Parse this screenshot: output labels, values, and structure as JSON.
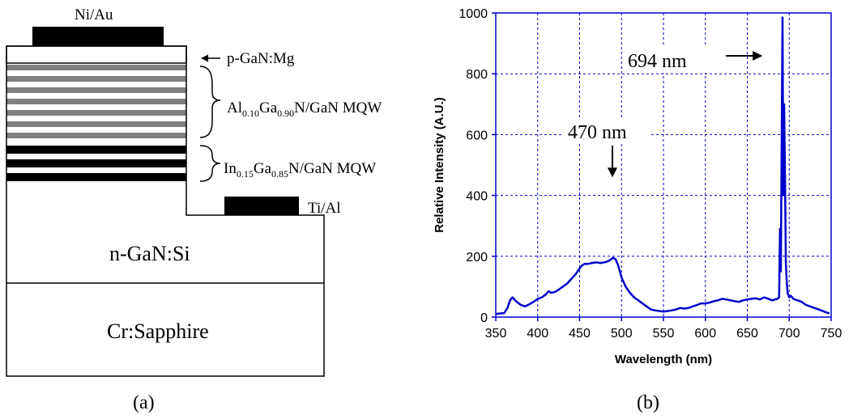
{
  "panel_a": {
    "caption": "(a)",
    "top_contact": "Ni/Au",
    "p_layer": "p-GaN:Mg",
    "algan_mqw": {
      "base1": "Al",
      "sub1": "0.10",
      "base2": "Ga",
      "sub2": "0.90",
      "rest": "N/GaN MQW"
    },
    "ingan_mqw": {
      "base1": "In",
      "sub1": "0.15",
      "base2": "Ga",
      "sub2": "0.85",
      "rest": "N/GaN MQW"
    },
    "side_contact": "Ti/Al",
    "n_layer": "n-GaN:Si",
    "substrate": "Cr:Sapphire",
    "colors": {
      "contact": "#000000",
      "algan_layer": "#808080",
      "ingan_layer": "#000000"
    }
  },
  "panel_b": {
    "caption": "(b)",
    "annotation_peak1": "470 nm",
    "annotation_peak2": "694 nm"
  },
  "chart_data": {
    "type": "line",
    "xlabel": "Wavelength (nm)",
    "ylabel": "Relative Intensity (A.U.)",
    "xlim": [
      350,
      750
    ],
    "ylim": [
      0,
      1000
    ],
    "xticks": [
      350,
      400,
      450,
      500,
      550,
      600,
      650,
      700,
      750
    ],
    "yticks": [
      0,
      200,
      400,
      600,
      800,
      1000
    ],
    "grid": true,
    "series_color": "#0000cc",
    "series": [
      {
        "x": [
          350,
          355,
          360,
          364,
          367,
          370,
          375,
          380,
          385,
          390,
          395,
          400,
          405,
          410,
          413,
          416,
          420,
          425,
          430,
          435,
          440,
          445,
          450,
          453,
          456,
          460,
          465,
          470,
          475,
          480,
          485,
          490,
          493,
          496,
          500,
          505,
          510,
          515,
          520,
          525,
          530,
          535,
          540,
          545,
          550,
          555,
          560,
          565,
          570,
          575,
          580,
          585,
          590,
          595,
          600,
          605,
          610,
          615,
          620,
          625,
          630,
          635,
          640,
          645,
          650,
          655,
          660,
          665,
          670,
          675,
          680,
          683,
          686,
          688,
          689,
          690,
          691,
          692,
          693,
          694,
          695,
          696,
          697,
          698,
          700,
          702,
          705,
          710,
          715,
          720,
          725,
          730,
          735,
          740,
          745,
          748
        ],
        "y": [
          10,
          12,
          13,
          30,
          55,
          65,
          50,
          40,
          35,
          42,
          50,
          60,
          65,
          75,
          85,
          80,
          82,
          90,
          100,
          110,
          125,
          140,
          160,
          170,
          175,
          175,
          178,
          180,
          178,
          180,
          185,
          195,
          190,
          170,
          130,
          100,
          80,
          65,
          55,
          45,
          35,
          25,
          22,
          20,
          18,
          20,
          22,
          25,
          30,
          28,
          30,
          35,
          40,
          45,
          45,
          48,
          52,
          55,
          60,
          58,
          55,
          52,
          50,
          55,
          58,
          60,
          62,
          58,
          65,
          60,
          55,
          58,
          60,
          65,
          290,
          150,
          550,
          985,
          400,
          700,
          450,
          180,
          120,
          80,
          65,
          70,
          60,
          55,
          50,
          40,
          35,
          30,
          25,
          20,
          15,
          12
        ]
      }
    ]
  }
}
